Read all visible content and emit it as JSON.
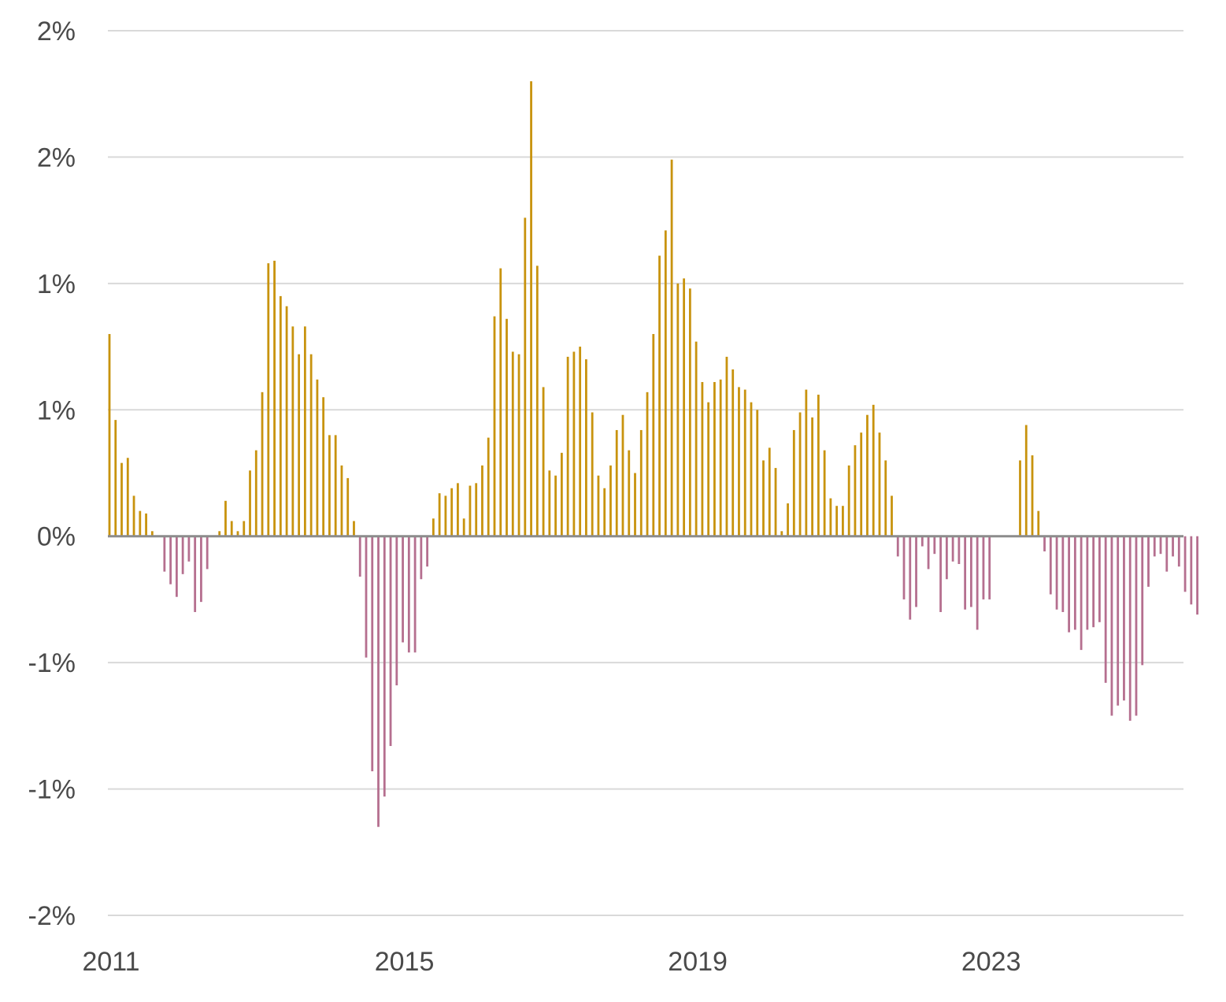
{
  "chart_data": {
    "type": "bar",
    "title": "",
    "xlabel": "",
    "ylabel": "",
    "y_tick_labels": [
      "2%",
      "2%",
      "1%",
      "1%",
      "0%",
      "-1%",
      "-1%",
      "-2%"
    ],
    "y_tick_values": [
      2.0,
      1.5,
      1.0,
      0.5,
      0.0,
      -0.5,
      -1.0,
      -1.5
    ],
    "ylim": [
      -1.5,
      2.0
    ],
    "xlim": [
      2011.0,
      2025.666
    ],
    "x_tick_labels": [
      "2011",
      "2015",
      "2019",
      "2023"
    ],
    "x_tick_values": [
      2011,
      2015,
      2019,
      2023
    ],
    "grid": "horizontal",
    "legend": "none",
    "colors": {
      "positive": "#c8930e",
      "negative": "#b56f8f",
      "grid": "#d9d9d9",
      "zero": "#8c8c8c",
      "text": "#4a4a4a"
    },
    "series": [
      {
        "start": "2011-01",
        "frequency": "monthly",
        "values": [
          0.8,
          0.46,
          0.29,
          0.31,
          0.16,
          0.1,
          0.09,
          0.02,
          0.0,
          -0.14,
          -0.19,
          -0.24,
          -0.15,
          -0.1,
          -0.3,
          -0.26,
          -0.13,
          0.0,
          0.02,
          0.14,
          0.06,
          0.02,
          0.06,
          0.26,
          0.34,
          0.57,
          1.08,
          1.09,
          0.95,
          0.91,
          0.83,
          0.72,
          0.83,
          0.72,
          0.62,
          0.55,
          0.4,
          0.4,
          0.28,
          0.23,
          0.06,
          -0.16,
          -0.48,
          -0.93,
          -1.15,
          -1.03,
          -0.83,
          -0.59,
          -0.42,
          -0.46,
          -0.46,
          -0.17,
          -0.12,
          0.07,
          0.17,
          0.16,
          0.19,
          0.21,
          0.07,
          0.2,
          0.21,
          0.28,
          0.39,
          0.87,
          1.06,
          0.86,
          0.73,
          0.72,
          1.26,
          1.8,
          1.07,
          0.59,
          0.26,
          0.24,
          0.33,
          0.71,
          0.73,
          0.75,
          0.7,
          0.49,
          0.24,
          0.19,
          0.28,
          0.42,
          0.48,
          0.34,
          0.25,
          0.42,
          0.57,
          0.8,
          1.11,
          1.21,
          1.49,
          1.0,
          1.02,
          0.98,
          0.77,
          0.61,
          0.53,
          0.61,
          0.62,
          0.71,
          0.66,
          0.59,
          0.58,
          0.53,
          0.5,
          0.3,
          0.35,
          0.27,
          0.02,
          0.13,
          0.42,
          0.49,
          0.58,
          0.47,
          0.56,
          0.34,
          0.15,
          0.12,
          0.12,
          0.28,
          0.36,
          0.41,
          0.48,
          0.52,
          0.41,
          0.3,
          0.16,
          -0.08,
          -0.25,
          -0.33,
          -0.28,
          -0.04,
          -0.13,
          -0.07,
          -0.3,
          -0.17,
          -0.1,
          -0.11,
          -0.29,
          -0.28,
          -0.37,
          -0.25,
          -0.25,
          0.0,
          0.0,
          0.0,
          0.0,
          0.3,
          0.44,
          0.32,
          0.1,
          -0.06,
          -0.23,
          -0.29,
          -0.3,
          -0.38,
          -0.37,
          -0.45,
          -0.37,
          -0.36,
          -0.34,
          -0.58,
          -0.71,
          -0.67,
          -0.65,
          -0.73,
          -0.71,
          -0.51,
          -0.2,
          -0.08,
          -0.07,
          -0.14,
          -0.08,
          -0.12,
          -0.22,
          -0.27,
          -0.31
        ]
      }
    ]
  }
}
